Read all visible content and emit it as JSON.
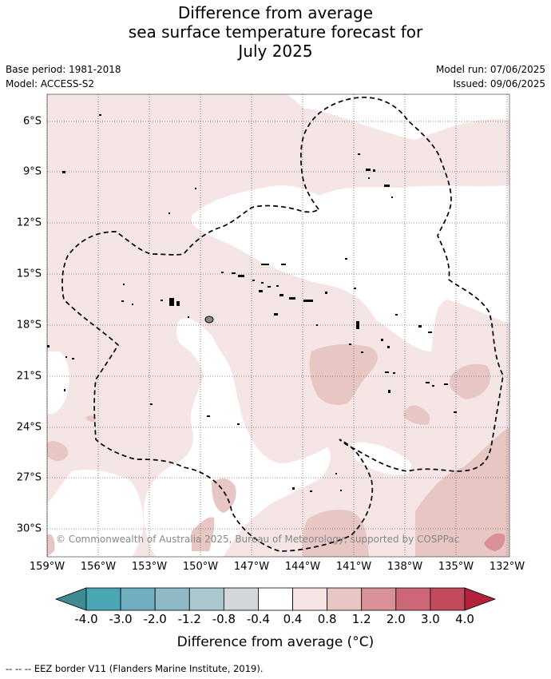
{
  "title": {
    "line1": "Difference from average",
    "line2": "sea surface temperature forecast for",
    "line3": "July 2025"
  },
  "meta": {
    "base_period": "Base period: 1981-2018",
    "model": "Model: ACCESS-S2",
    "model_run": "Model run: 07/06/2025",
    "issued": "Issued: 09/06/2025"
  },
  "map": {
    "lat_labels": [
      "6°S",
      "9°S",
      "12°S",
      "15°S",
      "18°S",
      "21°S",
      "24°S",
      "27°S",
      "30°S"
    ],
    "lon_labels": [
      "159°W",
      "156°W",
      "153°W",
      "150°W",
      "147°W",
      "144°W",
      "141°W",
      "138°W",
      "135°W",
      "132°W"
    ],
    "copyright": "© Commonwealth of Australia 2025, Bureau of Meteorology, supported by COSPPac"
  },
  "colorbar": {
    "title": "Difference from average (°C)",
    "tick_labels": [
      "-4.0",
      "-3.0",
      "-2.0",
      "-1.2",
      "-0.8",
      "-0.4",
      "0.4",
      "0.8",
      "1.2",
      "2.0",
      "3.0",
      "4.0"
    ],
    "colors": [
      "#3f8a93",
      "#4aa5b5",
      "#6eaebe",
      "#8dbac6",
      "#aac9ce",
      "#d3d7d9",
      "#ffffff",
      "#f5e6e5",
      "#e8c6c3",
      "#d99096",
      "#cc6776",
      "#c24a5d",
      "#b2213d"
    ]
  },
  "footer": "--  --  -- EEZ border V11 (Flanders Marine Institute, 2019)."
}
